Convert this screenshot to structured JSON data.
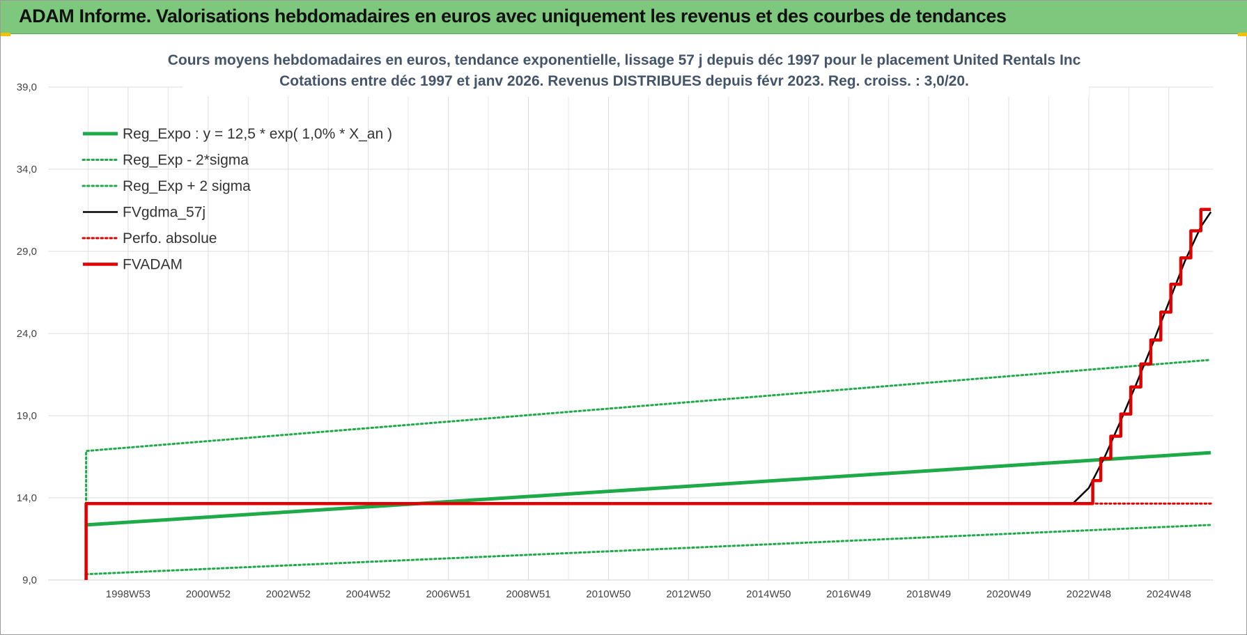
{
  "header": {
    "title": "ADAM Informe. Valorisations hebdomadaires en euros avec uniquement les revenus et des courbes de tendances"
  },
  "chart_data": {
    "type": "line",
    "title_line1": "Cours moyens hebdomadaires en euros, tendance exponentielle, lissage 57 j depuis déc 1997 pour le placement United Rentals Inc",
    "title_line2": "Cotations entre déc 1997 et janv 2026. Revenus DISTRIBUES depuis févr 2023. Reg. croiss. : 3,0/20.",
    "xlabel": "",
    "ylabel": "",
    "grid": true,
    "legend_position": "top-left",
    "x_range": [
      1997.0,
      2026.1
    ],
    "y_range": [
      9.0,
      39.0
    ],
    "y_ticks": [
      "9,0",
      "14,0",
      "19,0",
      "24,0",
      "29,0",
      "34,0",
      "39,0"
    ],
    "y_tick_values": [
      9,
      14,
      19,
      24,
      29,
      34,
      39
    ],
    "x_tick_labels": [
      "1998W53",
      "2000W52",
      "2002W52",
      "2004W52",
      "2006W51",
      "2008W51",
      "2010W50",
      "2012W50",
      "2014W50",
      "2016W49",
      "2018W49",
      "2020W49",
      "2022W48",
      "2024W48"
    ],
    "x_tick_values": [
      1999.0,
      2001.0,
      2003.0,
      2005.0,
      2007.0,
      2009.0,
      2011.0,
      2013.0,
      2015.0,
      2017.0,
      2019.0,
      2021.0,
      2023.0,
      2025.0
    ],
    "series": [
      {
        "name": "Reg_Expo : y = 12,5 * exp( 1,0% *  X_an )",
        "color": "#1faa4a",
        "style": "solid-thick",
        "x": [
          1997.95,
          2026.05
        ],
        "y": [
          12.35,
          16.75
        ]
      },
      {
        "name": "Reg_Exp - 2*sigma",
        "color": "#1faa4a",
        "style": "dotted",
        "x": [
          1997.95,
          2026.05
        ],
        "y": [
          9.35,
          12.35
        ]
      },
      {
        "name": "Reg_Exp + 2 sigma",
        "color": "#1faa4a",
        "style": "dotted",
        "x": [
          1997.95,
          1997.95,
          2026.05
        ],
        "y": [
          13.6,
          16.85,
          22.4
        ]
      },
      {
        "name": "FVgdma_57j",
        "color": "#000000",
        "style": "solid",
        "x": [
          1997.95,
          1997.95,
          2022.6,
          2023.0,
          2023.4,
          2023.8,
          2024.2,
          2024.6,
          2025.0,
          2025.4,
          2025.8,
          2026.05
        ],
        "y": [
          9.0,
          13.65,
          13.65,
          14.6,
          16.5,
          18.7,
          21.0,
          23.4,
          25.9,
          28.4,
          30.5,
          31.4
        ]
      },
      {
        "name": "Perfo. absolue",
        "color": "#e00000",
        "style": "dotted",
        "x": [
          1997.95,
          2026.05
        ],
        "y": [
          13.65,
          13.65
        ]
      },
      {
        "name": "FVADAM",
        "color": "#e00000",
        "style": "step-thick",
        "x": [
          1997.95,
          1997.95,
          2023.1,
          2023.3,
          2023.55,
          2023.8,
          2024.05,
          2024.3,
          2024.55,
          2024.8,
          2025.05,
          2025.3,
          2025.55,
          2025.8,
          2026.05
        ],
        "y": [
          9.0,
          13.65,
          15.05,
          16.4,
          17.75,
          19.1,
          20.75,
          22.15,
          23.6,
          25.3,
          27.0,
          28.6,
          30.25,
          31.55,
          31.55
        ]
      }
    ]
  }
}
